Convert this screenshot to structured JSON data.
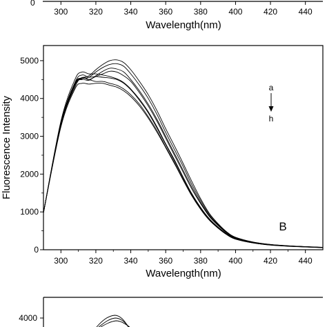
{
  "chart_data": [
    {
      "panel": "top (cropped)",
      "type": "line",
      "xlabel": "Wavelength(nm)",
      "x_ticks": [
        300,
        320,
        340,
        360,
        380,
        400,
        420,
        440
      ],
      "xlim": [
        290,
        450
      ]
    },
    {
      "panel": "B",
      "type": "line",
      "panel_label": "B",
      "xlabel": "Wavelength(nm)",
      "ylabel": "Fluorescence Intensity",
      "xlim": [
        290,
        450
      ],
      "ylim": [
        0,
        5400
      ],
      "x_ticks": [
        300,
        320,
        340,
        360,
        380,
        400,
        420,
        440
      ],
      "y_ticks": [
        0,
        1000,
        2000,
        3000,
        4000,
        5000
      ],
      "legend": {
        "top": "a",
        "bottom": "h",
        "placement": "right"
      },
      "x": [
        290,
        300,
        308,
        312,
        316,
        320,
        324,
        328,
        332,
        336,
        340,
        345,
        350,
        355,
        360,
        365,
        370,
        375,
        380,
        385,
        390,
        395,
        400,
        410,
        420,
        430,
        440,
        450
      ],
      "series": [
        {
          "values": [
            980,
            3400,
            4500,
            4700,
            4650,
            4650,
            4620,
            4580,
            4520,
            4420,
            4250,
            3980,
            3650,
            3250,
            2800,
            2380,
            1920,
            1480,
            1120,
            820,
            600,
            420,
            300,
            190,
            130,
            100,
            80,
            60
          ]
        },
        {
          "values": [
            980,
            3350,
            4420,
            4620,
            4560,
            4580,
            4560,
            4540,
            4500,
            4400,
            4230,
            3950,
            3620,
            3220,
            2780,
            2350,
            1900,
            1460,
            1100,
            800,
            590,
            410,
            290,
            185,
            125,
            95,
            75,
            58
          ]
        },
        {
          "values": [
            980,
            3300,
            4300,
            4550,
            4500,
            4450,
            4450,
            4400,
            4350,
            4250,
            4100,
            3850,
            3520,
            3150,
            2720,
            2300,
            1860,
            1430,
            1080,
            790,
            580,
            400,
            285,
            180,
            125,
            95,
            75,
            57
          ]
        },
        {
          "values": [
            980,
            3250,
            4250,
            4400,
            4380,
            4400,
            4400,
            4350,
            4300,
            4200,
            4050,
            3800,
            3480,
            3110,
            2700,
            2280,
            1840,
            1420,
            1070,
            780,
            570,
            395,
            280,
            178,
            122,
            92,
            72,
            55
          ]
        },
        {
          "values": [
            980,
            3300,
            4350,
            4550,
            4500,
            4580,
            4650,
            4720,
            4700,
            4600,
            4450,
            4150,
            3800,
            3400,
            2950,
            2500,
            2050,
            1600,
            1220,
            880,
            640,
            440,
            310,
            195,
            133,
            100,
            80,
            60
          ]
        },
        {
          "values": [
            980,
            3300,
            4350,
            4500,
            4480,
            4600,
            4720,
            4800,
            4780,
            4700,
            4500,
            4200,
            3850,
            3450,
            3000,
            2550,
            2100,
            1650,
            1250,
            900,
            650,
            450,
            315,
            198,
            135,
            102,
            80,
            60
          ]
        },
        {
          "values": [
            980,
            3320,
            4380,
            4520,
            4560,
            4700,
            4820,
            4900,
            4920,
            4850,
            4650,
            4350,
            4000,
            3580,
            3100,
            2650,
            2200,
            1720,
            1300,
            930,
            670,
            460,
            320,
            200,
            138,
            104,
            82,
            62
          ]
        },
        {
          "values": [
            980,
            3350,
            4400,
            4540,
            4600,
            4760,
            4900,
            5000,
            5020,
            4950,
            4760,
            4450,
            4100,
            3680,
            3200,
            2750,
            2280,
            1800,
            1350,
            960,
            690,
            470,
            330,
            205,
            140,
            105,
            83,
            63
          ]
        }
      ]
    },
    {
      "panel": "bottom (cropped)",
      "type": "line",
      "y_ticks": [
        4000
      ]
    }
  ]
}
